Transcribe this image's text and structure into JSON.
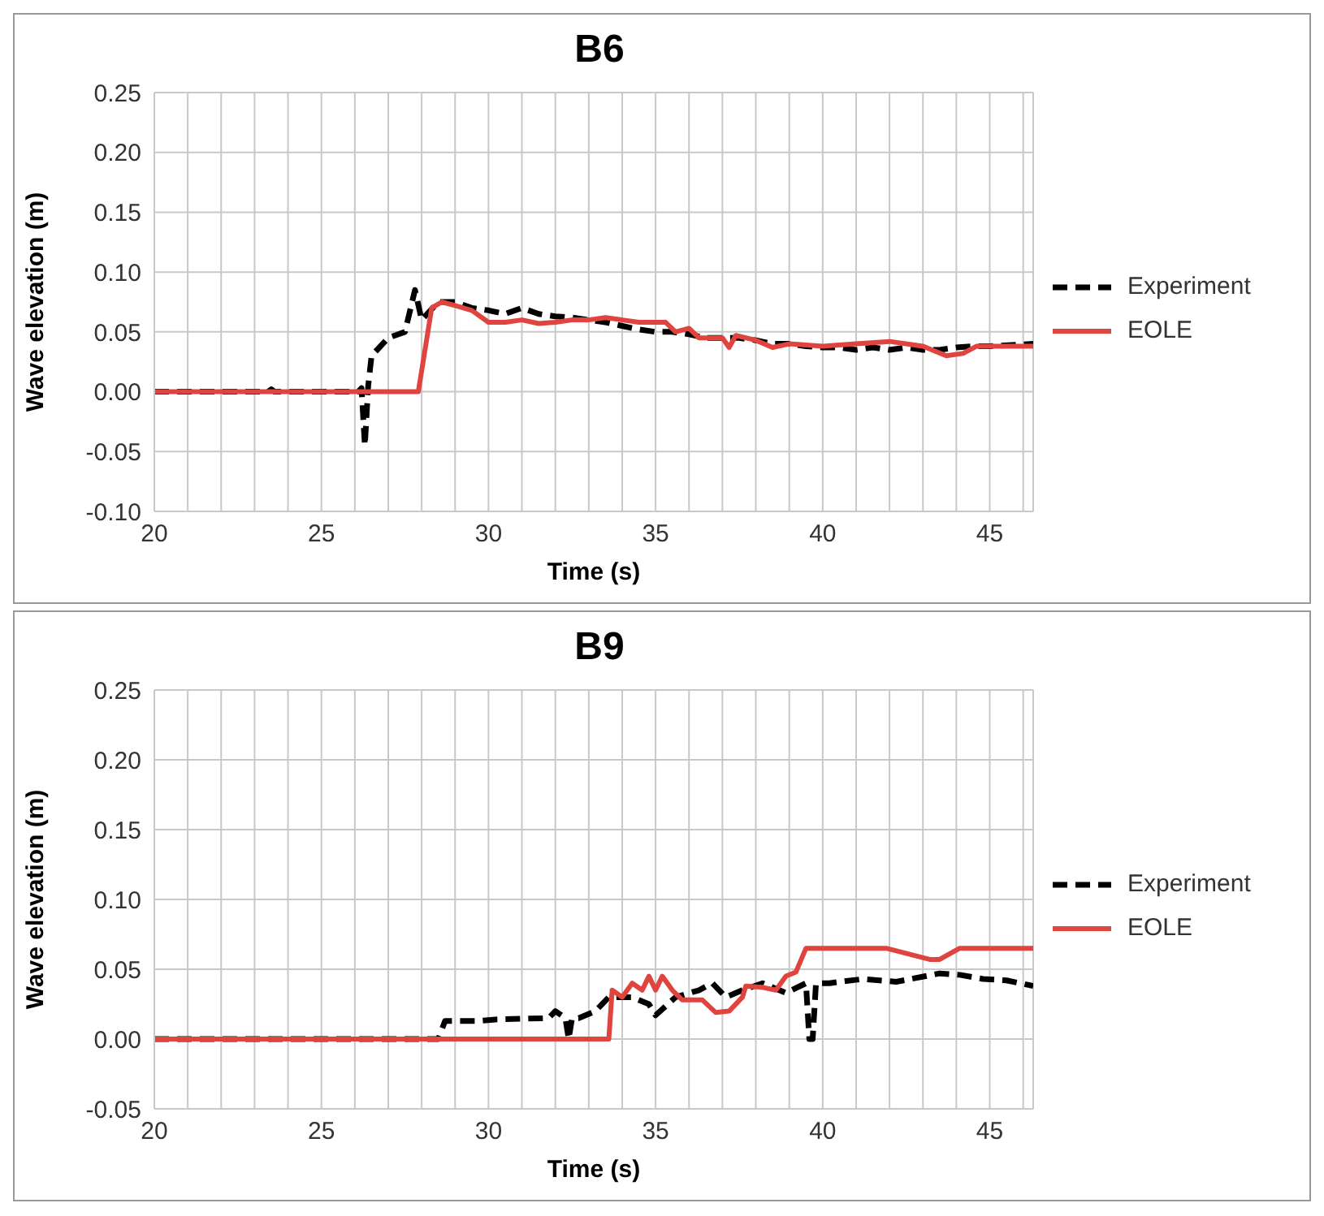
{
  "chart_data": [
    {
      "type": "line",
      "title": "B6",
      "xlabel": "Time (s)",
      "ylabel": "Wave elevation (m)",
      "xlim": [
        20,
        46.3
      ],
      "ylim": [
        -0.1,
        0.25
      ],
      "xticks": [
        20,
        {
          "value": 21,
          "label": null
        },
        {
          "value": 22,
          "label": null
        },
        {
          "value": 23,
          "label": null
        },
        {
          "value": 24,
          "label": null
        },
        25,
        {
          "value": 26,
          "label": null
        },
        {
          "value": 27,
          "label": null
        },
        {
          "value": 28,
          "label": null
        },
        {
          "value": 29,
          "label": null
        },
        30,
        {
          "value": 31,
          "label": null
        },
        {
          "value": 32,
          "label": null
        },
        {
          "value": 33,
          "label": null
        },
        {
          "value": 34,
          "label": null
        },
        35,
        {
          "value": 36,
          "label": null
        },
        {
          "value": 37,
          "label": null
        },
        {
          "value": 38,
          "label": null
        },
        {
          "value": 39,
          "label": null
        },
        40,
        {
          "value": 41,
          "label": null
        },
        {
          "value": 42,
          "label": null
        },
        {
          "value": 43,
          "label": null
        },
        {
          "value": 44,
          "label": null
        },
        45,
        {
          "value": 46,
          "label": null
        }
      ],
      "yticks": [
        {
          "value": -0.1,
          "label": "-0.10"
        },
        {
          "value": -0.05,
          "label": "-0.05"
        },
        {
          "value": 0,
          "label": "0.00"
        },
        {
          "value": 0.05,
          "label": "0.05"
        },
        {
          "value": 0.1,
          "label": "0.10"
        },
        {
          "value": 0.15,
          "label": "0.15"
        },
        {
          "value": 0.2,
          "label": "0.20"
        },
        {
          "value": 0.25,
          "label": "0.25"
        }
      ],
      "grid": true,
      "legend": "right",
      "marker": "none",
      "series": [
        {
          "name": "Experiment",
          "color": "#000000",
          "line_style": "dashed",
          "x": [
            20,
            23.4,
            23.5,
            23.6,
            26.1,
            26.2,
            26.3,
            26.4,
            26.5,
            27,
            27.5,
            27.8,
            28,
            28.5,
            29,
            29.5,
            30,
            30.5,
            31,
            31.5,
            32,
            32.5,
            33,
            33.5,
            34,
            34.5,
            35,
            35.5,
            36,
            36.5,
            37,
            37.5,
            38,
            38.5,
            39,
            39.5,
            40,
            40.5,
            41,
            41.5,
            42,
            42.5,
            43,
            43.5,
            44,
            44.5,
            45,
            46.3
          ],
          "values": [
            0,
            0,
            0.002,
            0,
            0,
            0.003,
            -0.045,
            0.005,
            0.03,
            0.045,
            0.05,
            0.085,
            0.06,
            0.075,
            0.075,
            0.07,
            0.068,
            0.065,
            0.07,
            0.065,
            0.063,
            0.062,
            0.06,
            0.058,
            0.055,
            0.052,
            0.05,
            0.05,
            0.048,
            0.045,
            0.045,
            0.045,
            0.043,
            0.04,
            0.04,
            0.038,
            0.037,
            0.037,
            0.035,
            0.037,
            0.035,
            0.037,
            0.035,
            0.035,
            0.037,
            0.038,
            0.038,
            0.04
          ]
        },
        {
          "name": "EOLE",
          "color": "#e0443e",
          "line_style": "solid",
          "x": [
            20,
            27.9,
            28.3,
            28.6,
            29,
            29.5,
            30,
            30.5,
            31,
            31.5,
            32,
            32.5,
            33,
            33.5,
            34,
            34.5,
            35,
            35.3,
            35.6,
            36,
            36.3,
            37,
            37.2,
            37.4,
            38,
            38.5,
            39,
            40,
            41,
            42,
            43,
            43.7,
            44.2,
            44.6,
            46.3
          ],
          "values": [
            0,
            0,
            0.07,
            0.075,
            0.072,
            0.068,
            0.058,
            0.058,
            0.06,
            0.057,
            0.058,
            0.06,
            0.06,
            0.062,
            0.06,
            0.058,
            0.058,
            0.058,
            0.05,
            0.053,
            0.045,
            0.045,
            0.037,
            0.047,
            0.043,
            0.037,
            0.04,
            0.038,
            0.04,
            0.042,
            0.038,
            0.03,
            0.032,
            0.038,
            0.038
          ]
        }
      ]
    },
    {
      "type": "line",
      "title": "B9",
      "xlabel": "Time (s)",
      "ylabel": "Wave elevation (m)",
      "xlim": [
        20,
        46.3
      ],
      "ylim": [
        -0.05,
        0.25
      ],
      "xticks": [
        20,
        {
          "value": 21,
          "label": null
        },
        {
          "value": 22,
          "label": null
        },
        {
          "value": 23,
          "label": null
        },
        {
          "value": 24,
          "label": null
        },
        25,
        {
          "value": 26,
          "label": null
        },
        {
          "value": 27,
          "label": null
        },
        {
          "value": 28,
          "label": null
        },
        {
          "value": 29,
          "label": null
        },
        30,
        {
          "value": 31,
          "label": null
        },
        {
          "value": 32,
          "label": null
        },
        {
          "value": 33,
          "label": null
        },
        {
          "value": 34,
          "label": null
        },
        35,
        {
          "value": 36,
          "label": null
        },
        {
          "value": 37,
          "label": null
        },
        {
          "value": 38,
          "label": null
        },
        {
          "value": 39,
          "label": null
        },
        40,
        {
          "value": 41,
          "label": null
        },
        {
          "value": 42,
          "label": null
        },
        {
          "value": 43,
          "label": null
        },
        {
          "value": 44,
          "label": null
        },
        45,
        {
          "value": 46,
          "label": null
        }
      ],
      "yticks": [
        {
          "value": -0.05,
          "label": "-0.05"
        },
        {
          "value": 0,
          "label": "0.00"
        },
        {
          "value": 0.05,
          "label": "0.05"
        },
        {
          "value": 0.1,
          "label": "0.10"
        },
        {
          "value": 0.15,
          "label": "0.15"
        },
        {
          "value": 0.2,
          "label": "0.20"
        },
        {
          "value": 0.25,
          "label": "0.25"
        }
      ],
      "grid": true,
      "legend": "right",
      "marker": "none",
      "series": [
        {
          "name": "Experiment",
          "color": "#000000",
          "line_style": "dashed",
          "x": [
            20,
            28.5,
            28.7,
            29.7,
            30.2,
            31.8,
            32,
            32.3,
            32.4,
            32.5,
            32.7,
            33.2,
            33.6,
            34.3,
            34.8,
            35,
            35.6,
            36.3,
            36.7,
            37.1,
            37.6,
            38.2,
            38.9,
            39.5,
            39.6,
            39.7,
            39.8,
            40.2,
            41.2,
            42.2,
            43.5,
            44.1,
            44.8,
            45.5,
            46.3
          ],
          "values": [
            0,
            0,
            0.013,
            0.013,
            0.014,
            0.015,
            0.02,
            0.015,
            0,
            0.015,
            0.015,
            0.02,
            0.03,
            0.03,
            0.025,
            0.017,
            0.03,
            0.035,
            0.04,
            0.03,
            0.035,
            0.04,
            0.033,
            0.04,
            0,
            0,
            0.04,
            0.04,
            0.043,
            0.041,
            0.047,
            0.046,
            0.043,
            0.042,
            0.038
          ]
        },
        {
          "name": "EOLE",
          "color": "#e0443e",
          "line_style": "solid",
          "x": [
            20,
            33.6,
            33.7,
            34,
            34.3,
            34.6,
            34.8,
            35,
            35.2,
            35.5,
            35.8,
            36.4,
            36.8,
            37.2,
            37.6,
            37.7,
            38.2,
            38.6,
            38.9,
            39.2,
            39.5,
            41.9,
            43.2,
            43.5,
            44.1,
            46.3
          ],
          "values": [
            0,
            0,
            0.035,
            0.03,
            0.04,
            0.035,
            0.045,
            0.035,
            0.045,
            0.035,
            0.028,
            0.028,
            0.019,
            0.02,
            0.03,
            0.038,
            0.037,
            0.035,
            0.045,
            0.048,
            0.065,
            0.065,
            0.057,
            0.057,
            0.065,
            0.065
          ]
        }
      ]
    }
  ]
}
